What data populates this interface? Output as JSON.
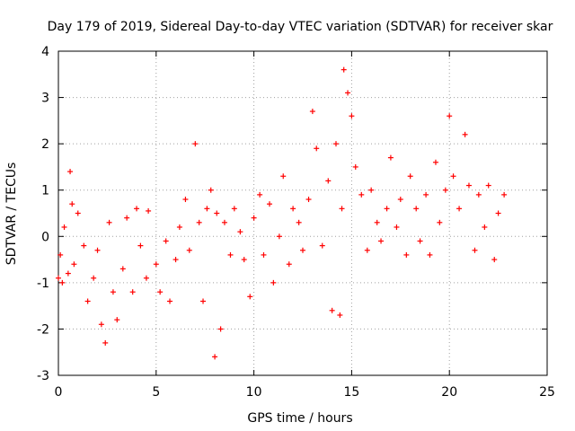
{
  "chart_data": {
    "type": "scatter",
    "title": "Day 179 of 2019, Sidereal Day-to-day VTEC variation (SDTVAR) for receiver skar",
    "xlabel": "GPS time / hours",
    "ylabel": "SDTVAR / TECUs",
    "xlim": [
      0,
      25
    ],
    "ylim": [
      -3,
      4
    ],
    "xticks": [
      0,
      5,
      10,
      15,
      20,
      25
    ],
    "yticks": [
      -3,
      -2,
      -1,
      0,
      1,
      2,
      3,
      4
    ],
    "xtick_labels": [
      "0",
      "5",
      "10",
      "15",
      "20",
      "25"
    ],
    "ytick_labels": [
      "-3",
      "-2",
      "-1",
      "0",
      "1",
      "2",
      "3",
      "4"
    ],
    "grid": true,
    "marker": "+",
    "marker_color": "#ff0000",
    "series": [
      {
        "name": "SDTVAR",
        "x": [
          0.0,
          0.1,
          0.2,
          0.3,
          0.5,
          0.6,
          0.7,
          0.8,
          1.0,
          1.3,
          1.5,
          1.8,
          2.0,
          2.2,
          2.4,
          2.6,
          2.8,
          3.0,
          3.3,
          3.5,
          3.8,
          4.0,
          4.2,
          4.5,
          4.6,
          5.0,
          5.2,
          5.5,
          5.7,
          6.0,
          6.2,
          6.5,
          6.7,
          7.0,
          7.2,
          7.4,
          7.6,
          7.8,
          8.0,
          8.1,
          8.3,
          8.5,
          8.8,
          9.0,
          9.3,
          9.5,
          9.8,
          10.0,
          10.3,
          10.5,
          10.8,
          11.0,
          11.3,
          11.5,
          11.8,
          12.0,
          12.3,
          12.5,
          12.8,
          13.0,
          13.2,
          13.5,
          13.8,
          14.0,
          14.2,
          14.4,
          14.5,
          14.6,
          14.8,
          15.0,
          15.2,
          15.5,
          15.8,
          16.0,
          16.3,
          16.5,
          16.8,
          17.0,
          17.3,
          17.5,
          17.8,
          18.0,
          18.3,
          18.5,
          18.8,
          19.0,
          19.3,
          19.5,
          19.8,
          20.0,
          20.2,
          20.5,
          20.8,
          21.0,
          21.3,
          21.5,
          21.8,
          22.0,
          22.3,
          22.5,
          22.8
        ],
        "y": [
          -0.9,
          -0.4,
          -1.0,
          0.2,
          -0.8,
          1.4,
          0.7,
          -0.6,
          0.5,
          -0.2,
          -1.4,
          -0.9,
          -0.3,
          -1.9,
          -2.3,
          0.3,
          -1.2,
          -1.8,
          -0.7,
          0.4,
          -1.2,
          0.6,
          -0.2,
          -0.9,
          0.55,
          -0.6,
          -1.2,
          -0.1,
          -1.4,
          -0.5,
          0.2,
          0.8,
          -0.3,
          2.0,
          0.3,
          -1.4,
          0.6,
          1.0,
          -2.6,
          0.5,
          -2.0,
          0.3,
          -0.4,
          0.6,
          0.1,
          -0.5,
          -1.3,
          0.4,
          0.9,
          -0.4,
          0.7,
          -1.0,
          0.0,
          1.3,
          -0.6,
          0.6,
          0.3,
          -0.3,
          0.8,
          2.7,
          1.9,
          -0.2,
          1.2,
          -1.6,
          2.0,
          -1.7,
          0.6,
          3.6,
          3.1,
          2.6,
          1.5,
          0.9,
          -0.3,
          1.0,
          0.3,
          -0.1,
          0.6,
          1.7,
          0.2,
          0.8,
          -0.4,
          1.3,
          0.6,
          -0.1,
          0.9,
          -0.4,
          1.6,
          0.3,
          1.0,
          2.6,
          1.3,
          0.6,
          2.2,
          1.1,
          -0.3,
          0.9,
          0.2,
          1.1,
          -0.5,
          0.5,
          0.9
        ]
      }
    ]
  }
}
